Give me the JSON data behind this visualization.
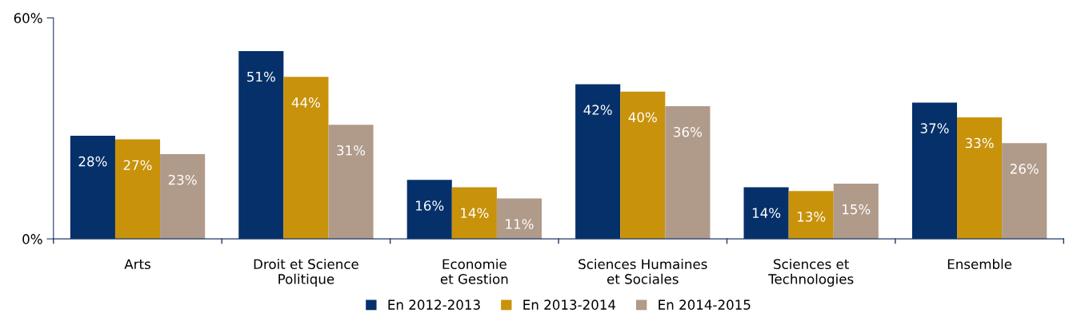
{
  "chart_data": {
    "type": "bar",
    "categories": [
      "Arts",
      "Droit et Science\nPolitique",
      "Economie\net Gestion",
      "Sciences Humaines\net Sociales",
      "Sciences et\nTechnologies",
      "Ensemble"
    ],
    "series": [
      {
        "name": "En 2012-2013",
        "color": "#06306a",
        "values": [
          28,
          51,
          16,
          42,
          14,
          37
        ],
        "value_labels": [
          "28%",
          "51%",
          "16%",
          "42%",
          "14%",
          "37%"
        ]
      },
      {
        "name": "En 2013-2014",
        "color": "#c8920a",
        "values": [
          27,
          44,
          14,
          40,
          13,
          33
        ],
        "value_labels": [
          "27%",
          "44%",
          "14%",
          "40%",
          "13%",
          "33%"
        ]
      },
      {
        "name": "En 2014-2015",
        "color": "#b09a8a",
        "values": [
          23,
          31,
          11,
          36,
          15,
          26
        ],
        "value_labels": [
          "23%",
          "31%",
          "11%",
          "36%",
          "15%",
          "26%"
        ]
      }
    ],
    "ylim": [
      0,
      60
    ],
    "yticks": [
      {
        "value": 0,
        "label": "0%"
      },
      {
        "value": 60,
        "label": "60%"
      }
    ],
    "grid": false,
    "legend": "bottom"
  }
}
